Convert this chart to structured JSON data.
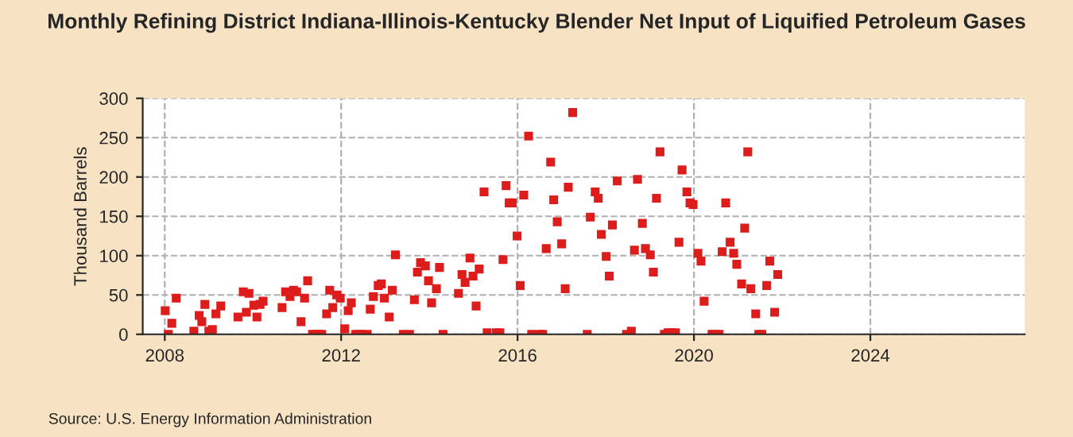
{
  "chart_data": {
    "type": "scatter",
    "title": "Monthly Refining District Indiana-Illinois-Kentucky Blender Net Input of Liquified Petroleum Gases",
    "ylabel": "Thousand Barrels",
    "annotations": [
      "Source: U.S. Energy Information Administration"
    ],
    "x": [
      2008.01,
      2008.08,
      2008.16,
      2008.26,
      2008.66,
      2008.78,
      2008.84,
      2008.91,
      2009.0,
      2009.08,
      2009.16,
      2009.27,
      2009.66,
      2009.78,
      2009.85,
      2009.91,
      2010.02,
      2010.09,
      2010.16,
      2010.23,
      2010.66,
      2010.74,
      2010.84,
      2010.92,
      2010.99,
      2011.09,
      2011.17,
      2011.24,
      2011.35,
      2011.42,
      2011.49,
      2011.56,
      2011.67,
      2011.74,
      2011.81,
      2011.9,
      2011.98,
      2012.08,
      2012.16,
      2012.23,
      2012.33,
      2012.41,
      2012.48,
      2012.59,
      2012.66,
      2012.73,
      2012.84,
      2012.91,
      2012.98,
      2013.09,
      2013.16,
      2013.23,
      2013.41,
      2013.55,
      2013.66,
      2013.73,
      2013.8,
      2013.91,
      2013.98,
      2014.05,
      2014.16,
      2014.23,
      2014.31,
      2014.66,
      2014.74,
      2014.81,
      2014.92,
      2014.99,
      2015.06,
      2015.13,
      2015.24,
      2015.31,
      2015.52,
      2015.6,
      2015.67,
      2015.74,
      2015.81,
      2015.88,
      2015.99,
      2016.06,
      2016.14,
      2016.25,
      2016.32,
      2016.5,
      2016.57,
      2016.65,
      2016.75,
      2016.82,
      2016.9,
      2017.0,
      2017.08,
      2017.15,
      2017.25,
      2017.58,
      2017.65,
      2017.76,
      2017.83,
      2017.9,
      2018.01,
      2018.08,
      2018.15,
      2018.26,
      2018.47,
      2018.58,
      2018.65,
      2018.72,
      2018.83,
      2018.9,
      2019.01,
      2019.08,
      2019.15,
      2019.23,
      2019.33,
      2019.41,
      2019.48,
      2019.58,
      2019.66,
      2019.73,
      2019.84,
      2019.91,
      2019.98,
      2020.09,
      2020.16,
      2020.23,
      2020.41,
      2020.47,
      2020.57,
      2020.64,
      2020.72,
      2020.82,
      2020.9,
      2020.97,
      2021.08,
      2021.15,
      2021.22,
      2021.29,
      2021.4,
      2021.47,
      2021.54,
      2021.65,
      2021.72,
      2021.83,
      2021.9
    ],
    "series": [
      {
        "color": "#dd1c1c",
        "values": [
          30,
          0,
          14,
          46,
          4,
          24,
          16,
          38,
          4,
          6,
          26,
          36,
          22,
          54,
          28,
          52,
          37,
          22,
          38,
          42,
          34,
          54,
          48,
          56,
          54,
          16,
          46,
          68,
          0,
          0,
          0,
          0,
          26,
          56,
          34,
          50,
          46,
          7,
          30,
          40,
          0,
          0,
          0,
          0,
          32,
          48,
          62,
          64,
          46,
          22,
          56,
          101,
          0,
          0,
          44,
          79,
          91,
          87,
          68,
          40,
          58,
          85,
          0,
          52,
          76,
          66,
          97,
          74,
          36,
          83,
          181,
          2,
          2,
          2,
          95,
          189,
          167,
          167,
          125,
          62,
          177,
          252,
          0,
          0,
          0,
          109,
          219,
          171,
          143,
          115,
          58,
          187,
          282,
          0,
          149,
          181,
          173,
          127,
          99,
          74,
          139,
          195,
          0,
          4,
          107,
          197,
          141,
          109,
          101,
          79,
          173,
          232,
          0,
          2,
          2,
          2,
          117,
          209,
          181,
          167,
          165,
          103,
          93,
          42,
          0,
          0,
          0,
          105,
          167,
          117,
          103,
          89,
          64,
          135,
          232,
          58,
          26,
          0,
          0,
          62,
          93,
          28,
          76
        ]
      }
    ],
    "xlim": [
      2007.5,
      2027.5
    ],
    "xticks": [
      2008,
      2012,
      2016,
      2020,
      2024
    ],
    "ylim": [
      0,
      300
    ],
    "yticks": [
      0,
      50,
      100,
      150,
      200,
      250,
      300
    ],
    "grid": true,
    "marker": "square"
  }
}
